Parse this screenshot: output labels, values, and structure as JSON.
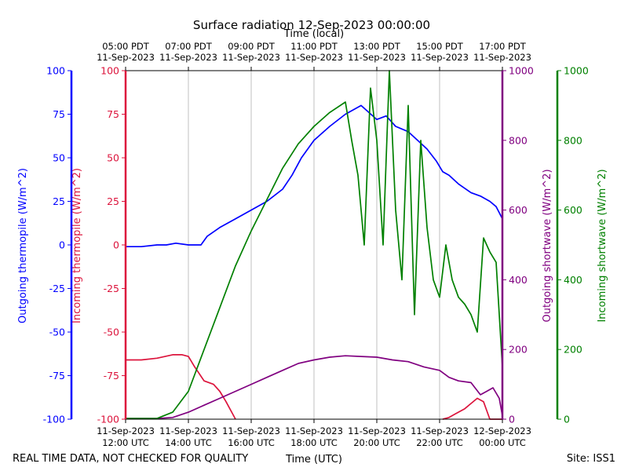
{
  "chart_data": {
    "type": "line",
    "title": "Surface radiation 12-Sep-2023 00:00:00",
    "top_axis_label": "Time (local)",
    "xlabel": "Time (UTC)",
    "footer_left": "REAL TIME DATA, NOT CHECKED FOR QUALITY",
    "footer_right": "Site: ISS1",
    "x_range_hours_utc": [
      12,
      24
    ],
    "bottom_ticks": [
      {
        "h": 12,
        "l1": "11-Sep-2023",
        "l2": "12:00 UTC"
      },
      {
        "h": 14,
        "l1": "11-Sep-2023",
        "l2": "14:00 UTC"
      },
      {
        "h": 16,
        "l1": "11-Sep-2023",
        "l2": "16:00 UTC"
      },
      {
        "h": 18,
        "l1": "11-Sep-2023",
        "l2": "18:00 UTC"
      },
      {
        "h": 20,
        "l1": "11-Sep-2023",
        "l2": "20:00 UTC"
      },
      {
        "h": 22,
        "l1": "11-Sep-2023",
        "l2": "22:00 UTC"
      },
      {
        "h": 24,
        "l1": "12-Sep-2023",
        "l2": "00:00 UTC"
      }
    ],
    "top_ticks": [
      {
        "h": 12,
        "l1": "05:00 PDT",
        "l2": "11-Sep-2023"
      },
      {
        "h": 14,
        "l1": "07:00 PDT",
        "l2": "11-Sep-2023"
      },
      {
        "h": 16,
        "l1": "09:00 PDT",
        "l2": "11-Sep-2023"
      },
      {
        "h": 18,
        "l1": "11:00 PDT",
        "l2": "11-Sep-2023"
      },
      {
        "h": 20,
        "l1": "13:00 PDT",
        "l2": "11-Sep-2023"
      },
      {
        "h": 22,
        "l1": "15:00 PDT",
        "l2": "11-Sep-2023"
      },
      {
        "h": 24,
        "l1": "17:00 PDT",
        "l2": "11-Sep-2023"
      }
    ],
    "axes": [
      {
        "id": "out_thermo",
        "label": "Outgoing thermopile (W/m^2)",
        "side": "left-outer",
        "color": "#0000ff",
        "ylim": [
          -100,
          100
        ],
        "ticks": [
          -100,
          -75,
          -50,
          -25,
          0,
          25,
          50,
          75,
          100
        ]
      },
      {
        "id": "in_thermo",
        "label": "Incoming thermopile (W/m^2)",
        "side": "left-inner",
        "color": "#dc143c",
        "ylim": [
          -100,
          100
        ],
        "ticks": [
          -100,
          -75,
          -50,
          -25,
          0,
          25,
          50,
          75,
          100
        ]
      },
      {
        "id": "out_sw",
        "label": "Outgoing shortwave (W/m^2)",
        "side": "right-inner",
        "color": "#800080",
        "ylim": [
          0,
          1000
        ],
        "ticks": [
          0,
          200,
          400,
          600,
          800,
          1000
        ]
      },
      {
        "id": "in_sw",
        "label": "Incoming shortwave (W/m^2)",
        "side": "right-outer",
        "color": "#008000",
        "ylim": [
          0,
          1000
        ],
        "ticks": [
          0,
          200,
          400,
          600,
          800,
          1000
        ]
      }
    ],
    "series": [
      {
        "name": "Outgoing thermopile",
        "axis": "out_thermo",
        "color": "#0000ff",
        "x": [
          12,
          12.5,
          13,
          13.3,
          13.6,
          14,
          14.4,
          14.6,
          15,
          15.5,
          16,
          16.5,
          17,
          17.3,
          17.6,
          18,
          18.5,
          19,
          19.5,
          20,
          20.3,
          20.6,
          21,
          21.3,
          21.6,
          21.9,
          22.1,
          22.3,
          22.6,
          23,
          23.3,
          23.6,
          23.8,
          24
        ],
        "y": [
          -1,
          -1,
          0,
          0,
          1,
          0,
          0,
          5,
          10,
          15,
          20,
          25,
          32,
          40,
          50,
          60,
          68,
          75,
          80,
          72,
          74,
          68,
          65,
          60,
          55,
          48,
          42,
          40,
          35,
          30,
          28,
          25,
          22,
          15
        ]
      },
      {
        "name": "Incoming thermopile",
        "axis": "in_thermo",
        "color": "#dc143c",
        "x": [
          12,
          12.5,
          13,
          13.5,
          13.8,
          14,
          14.2,
          14.5,
          14.8,
          15,
          15.2,
          15.5,
          null,
          22.1,
          22.3,
          22.5,
          22.8,
          23,
          23.2,
          23.4,
          23.6,
          23.9,
          24.0
        ],
        "y": [
          -66,
          -66,
          -65,
          -63,
          -63,
          -64,
          -70,
          -78,
          -80,
          -84,
          -90,
          -100,
          null,
          -100,
          -99,
          -97,
          -94,
          -91,
          -88,
          -90,
          -100,
          -100,
          -100
        ]
      },
      {
        "name": "Outgoing shortwave",
        "axis": "out_sw",
        "color": "#800080",
        "x": [
          12,
          13,
          13.5,
          14,
          14.5,
          15,
          15.5,
          16,
          16.5,
          17,
          17.5,
          18,
          18.5,
          19,
          19.5,
          20,
          20.5,
          21,
          21.5,
          22,
          22.3,
          22.6,
          23,
          23.3,
          23.5,
          23.7,
          23.9,
          24
        ],
        "y": [
          2,
          2,
          5,
          20,
          40,
          60,
          80,
          100,
          120,
          140,
          160,
          170,
          178,
          182,
          180,
          178,
          170,
          165,
          150,
          140,
          120,
          110,
          105,
          70,
          80,
          90,
          60,
          10
        ]
      },
      {
        "name": "Incoming shortwave",
        "axis": "in_sw",
        "color": "#008000",
        "x": [
          12,
          13,
          13.5,
          14,
          14.5,
          15,
          15.5,
          16,
          16.5,
          17,
          17.5,
          18,
          18.5,
          19,
          19.2,
          19.4,
          19.6,
          19.8,
          20,
          20.2,
          20.4,
          20.6,
          20.8,
          21,
          21.2,
          21.4,
          21.6,
          21.8,
          22,
          22.2,
          22.4,
          22.6,
          22.8,
          23,
          23.2,
          23.4,
          23.6,
          23.8,
          24
        ],
        "y": [
          2,
          2,
          20,
          80,
          200,
          320,
          440,
          540,
          630,
          720,
          790,
          840,
          880,
          910,
          800,
          700,
          500,
          950,
          800,
          500,
          1000,
          600,
          400,
          900,
          300,
          800,
          550,
          400,
          350,
          500,
          400,
          350,
          330,
          300,
          250,
          520,
          480,
          450,
          150
        ]
      }
    ]
  }
}
